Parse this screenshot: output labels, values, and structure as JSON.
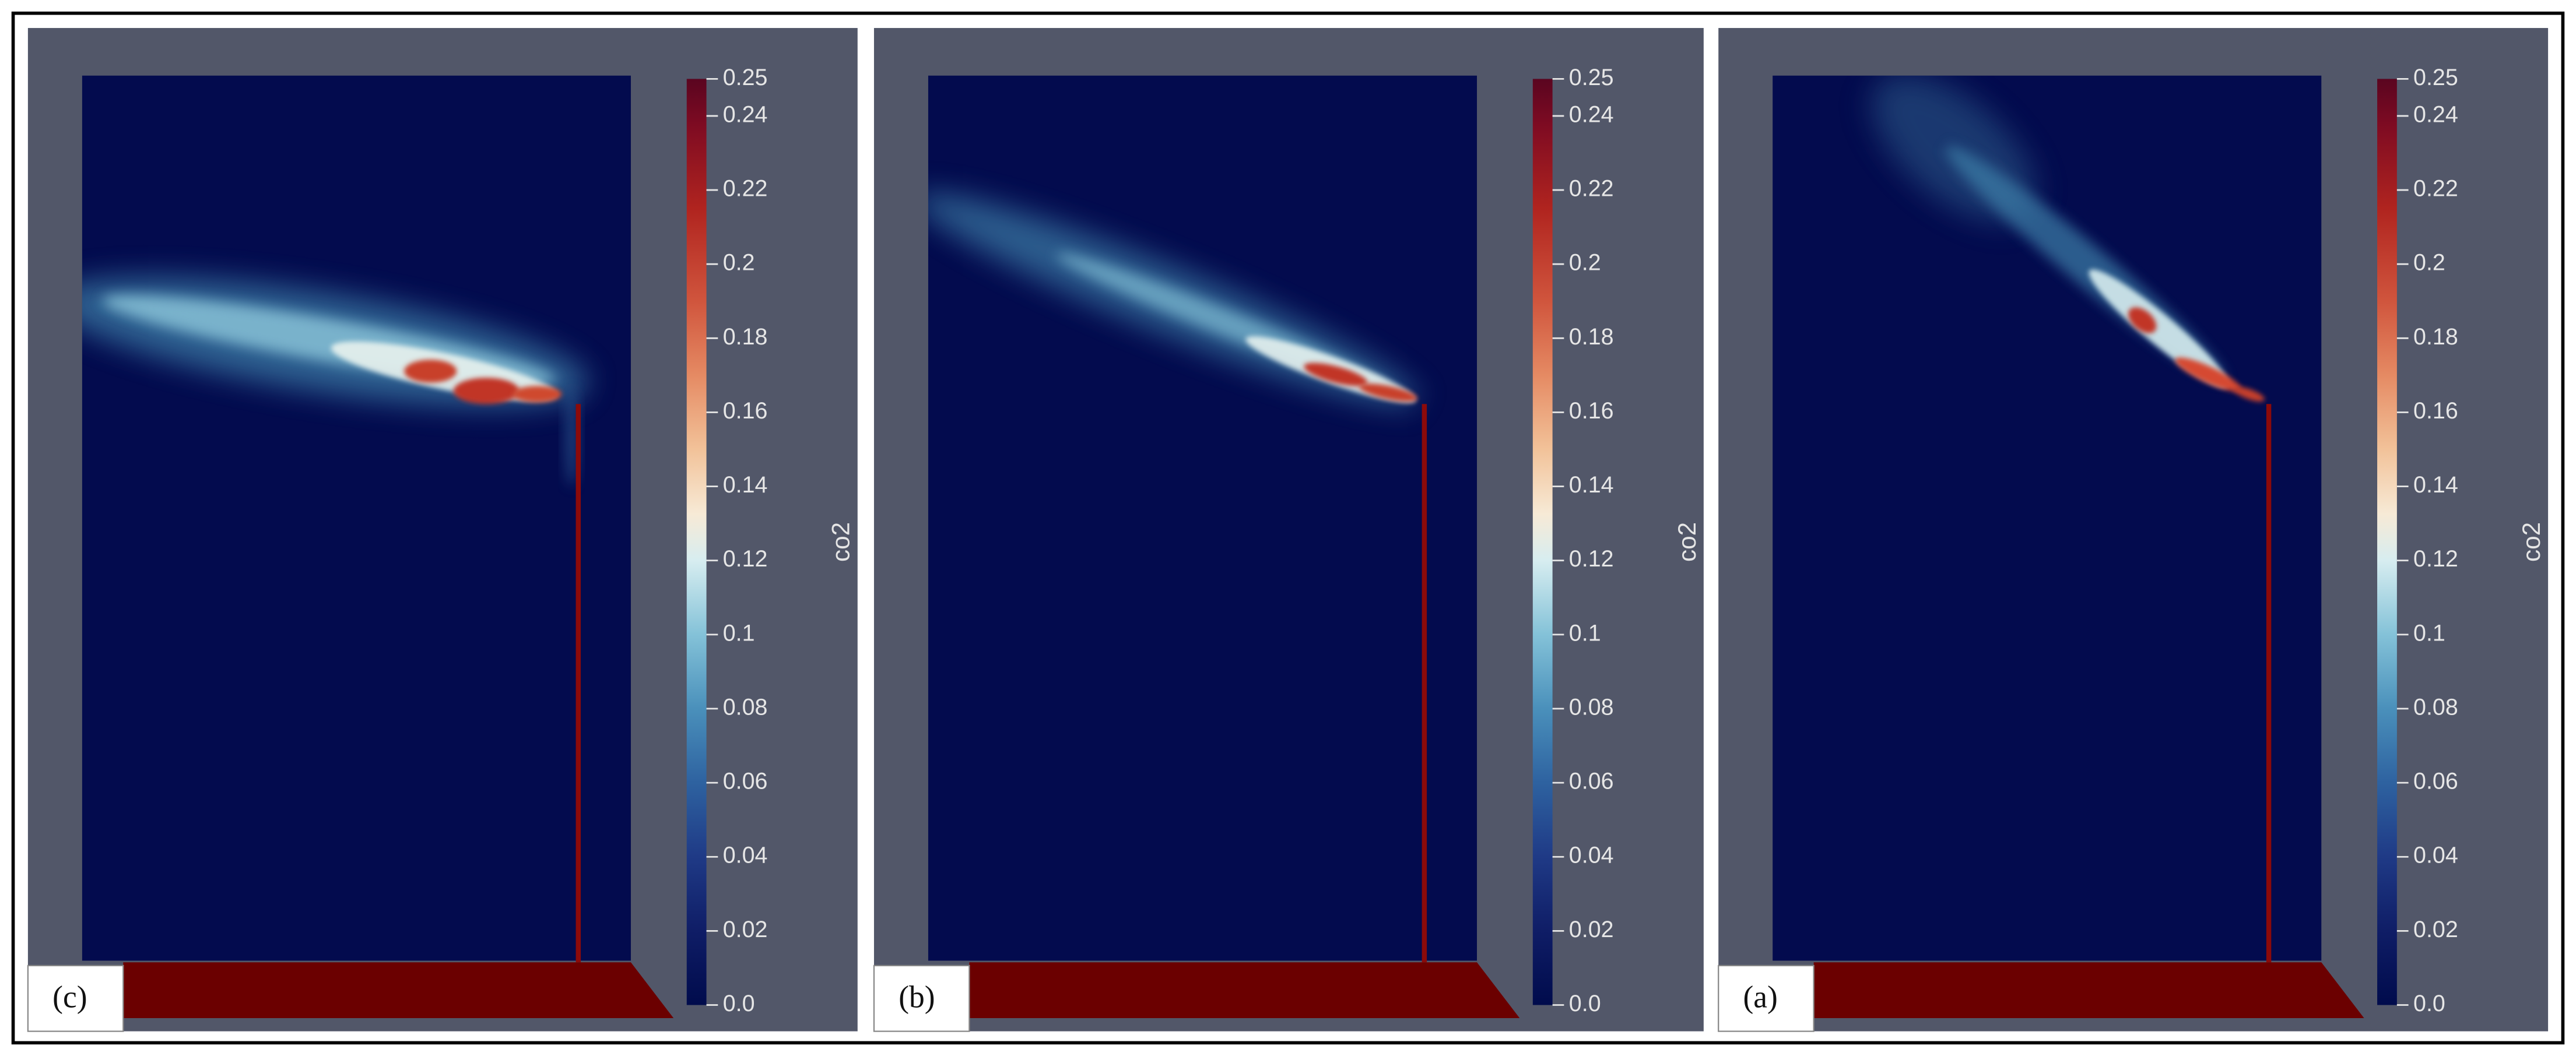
{
  "panels": [
    {
      "label": "(c)",
      "colorbar": {
        "title": "co2",
        "range": [
          0,
          0.25
        ],
        "ticks": [
          {
            "value": 0,
            "label": "0.0"
          },
          0.02,
          0.04,
          0.06,
          0.08,
          0.1,
          0.12,
          0.14,
          0.16,
          0.18,
          0.2,
          0.22,
          0.24,
          0.25
        ]
      }
    },
    {
      "label": "(b)",
      "colorbar": {
        "title": "co2",
        "range": [
          0,
          0.25
        ],
        "ticks": [
          {
            "value": 0,
            "label": "0.0"
          },
          0.02,
          0.04,
          0.06,
          0.08,
          0.1,
          0.12,
          0.14,
          0.16,
          0.18,
          0.2,
          0.22,
          0.24,
          0.25
        ]
      }
    },
    {
      "label": "(a)",
      "colorbar": {
        "title": "co2",
        "range": [
          0,
          0.25
        ],
        "ticks": [
          {
            "value": 0,
            "label": "0.0"
          },
          0.02,
          0.04,
          0.06,
          0.08,
          0.1,
          0.12,
          0.14,
          0.16,
          0.18,
          0.2,
          0.22,
          0.24,
          0.25
        ]
      }
    }
  ]
}
